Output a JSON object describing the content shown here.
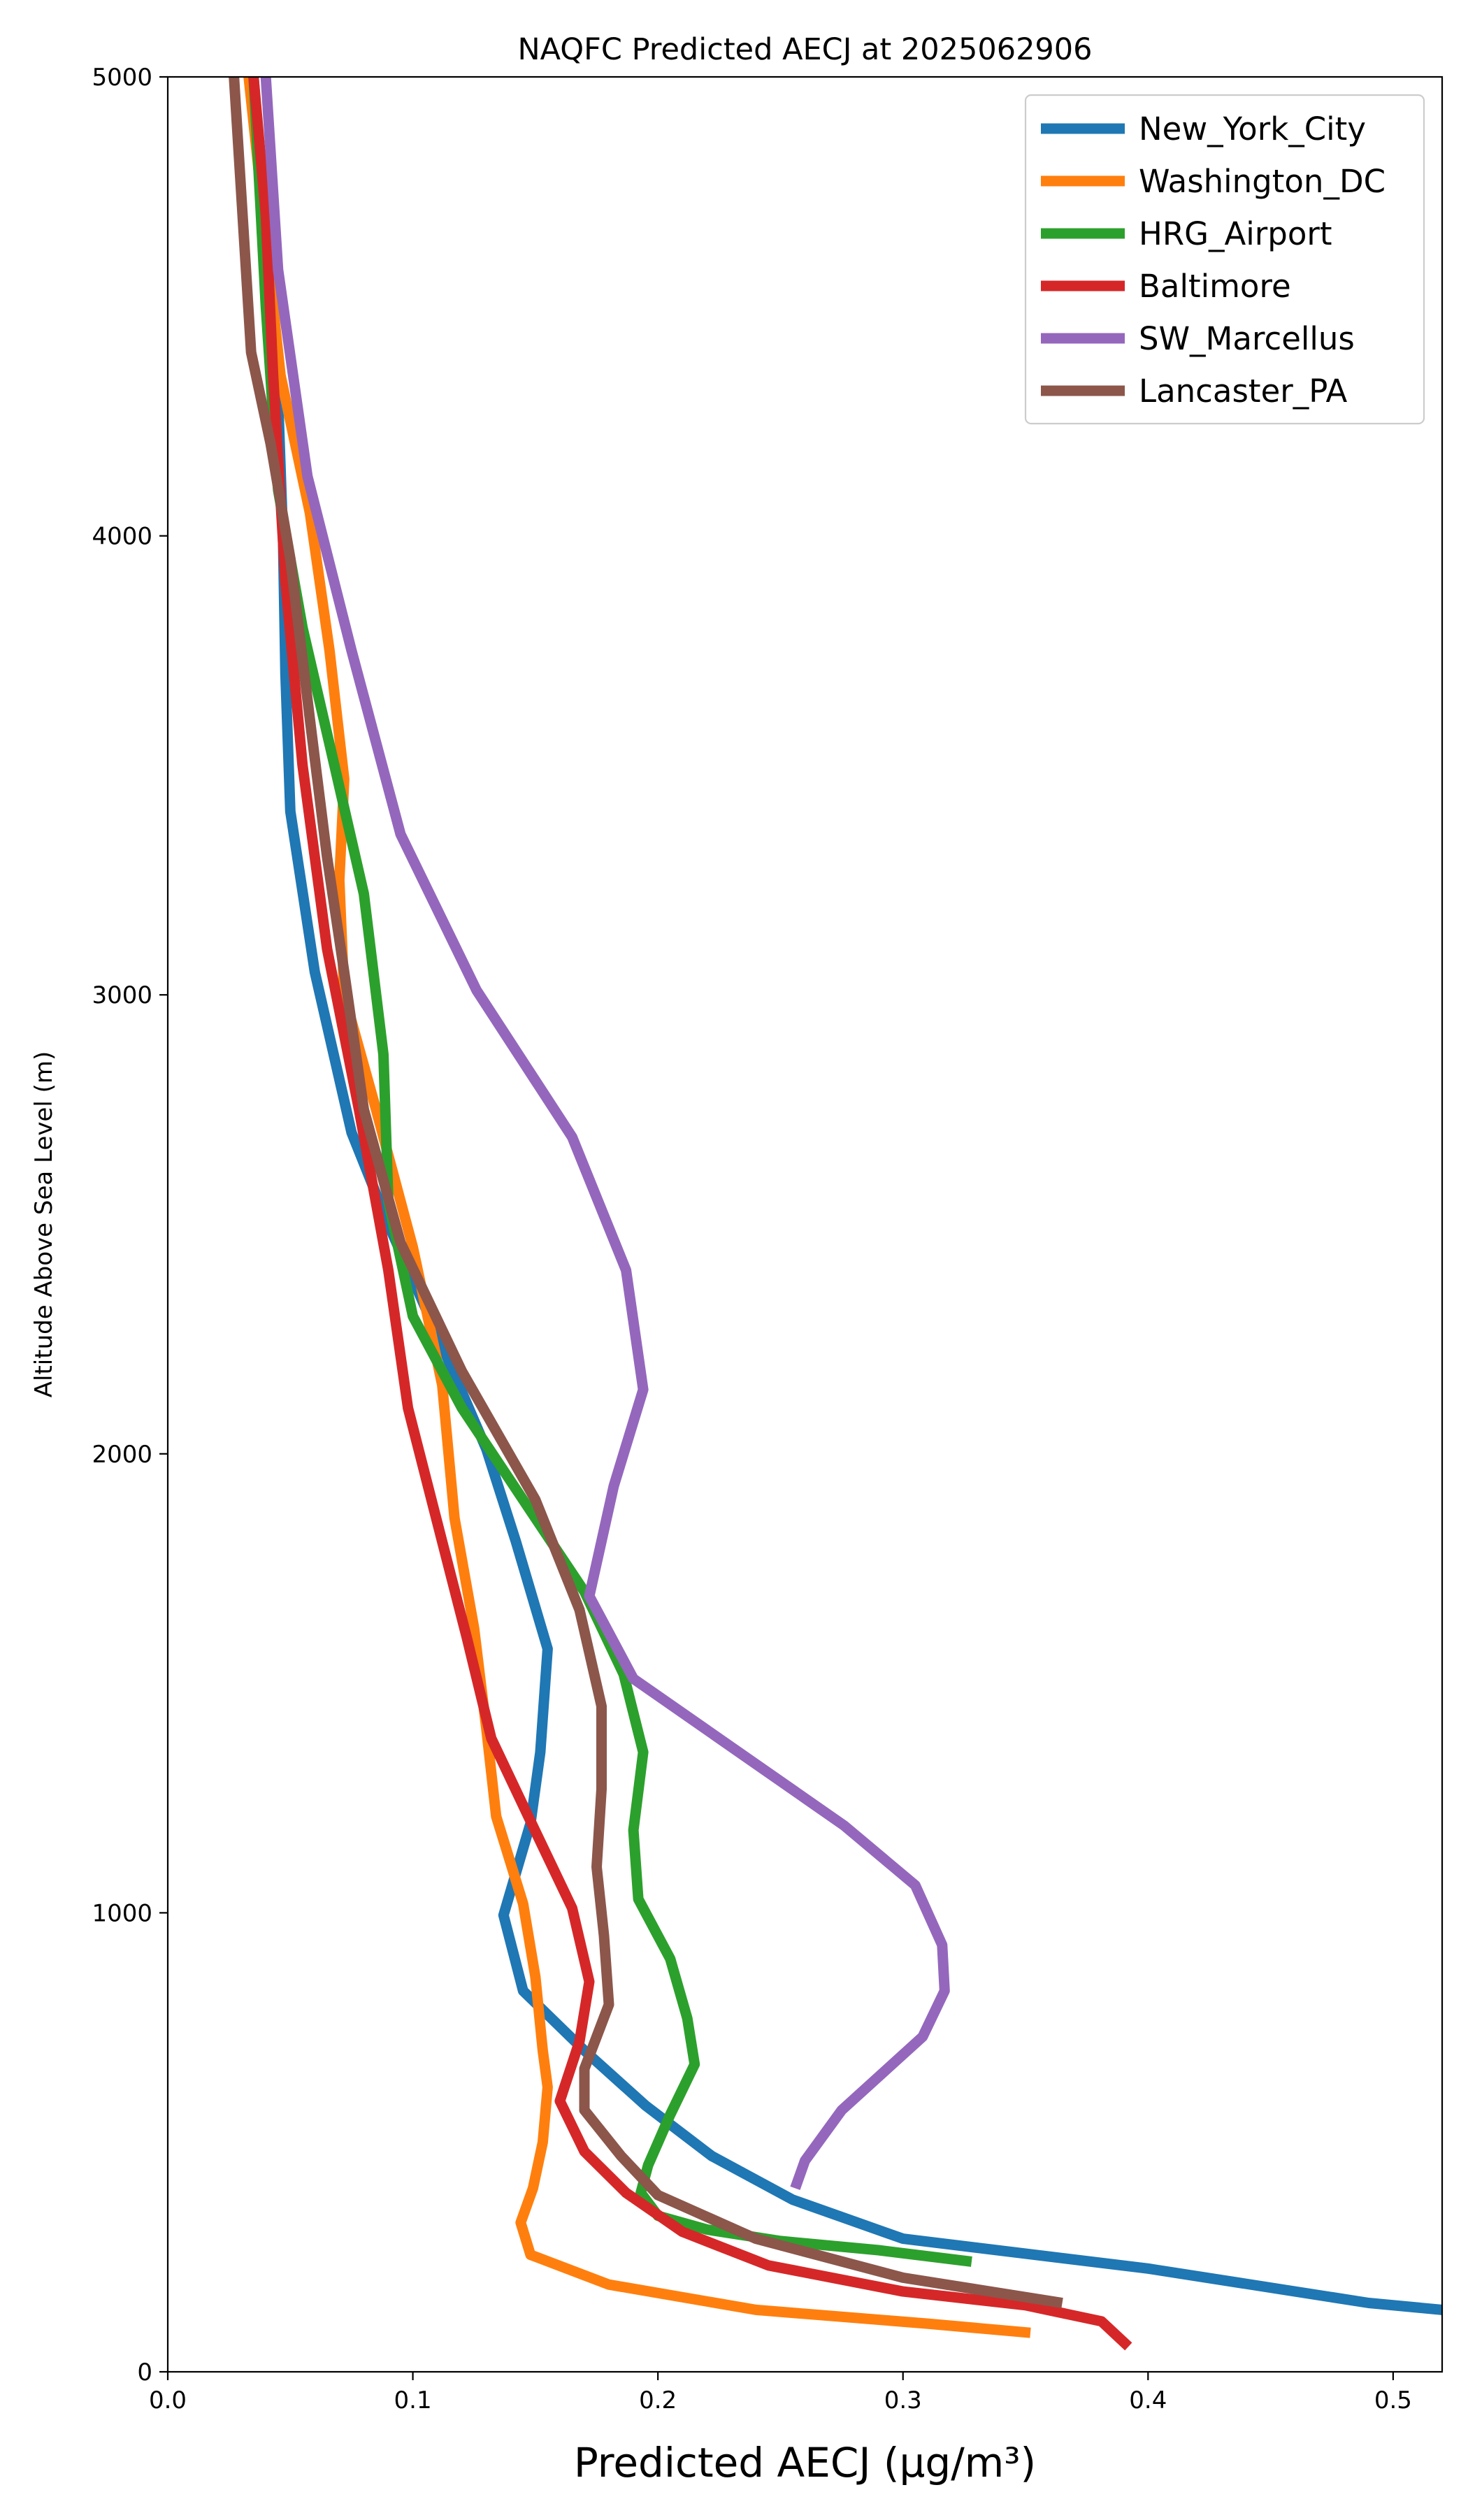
{
  "chart_data": {
    "type": "line",
    "title": "NAQFC Predicted AECJ at 2025062906",
    "xlabel": "Predicted AECJ (μg/m³)",
    "ylabel": "Altitude Above Sea Level (m)",
    "xlim": [
      0,
      0.52
    ],
    "ylim": [
      0,
      5000
    ],
    "xticks": [
      "0.0",
      "0.1",
      "0.2",
      "0.3",
      "0.4",
      "0.5"
    ],
    "yticks": [
      "0",
      "1000",
      "2000",
      "3000",
      "4000",
      "5000"
    ],
    "grid": false,
    "legend_position": "top-right",
    "series": [
      {
        "name": "New_York_City",
        "color": "#1f77b4",
        "points": [
          [
            0.52,
            135
          ],
          [
            0.49,
            150
          ],
          [
            0.4,
            225
          ],
          [
            0.3,
            290
          ],
          [
            0.255,
            375
          ],
          [
            0.222,
            470
          ],
          [
            0.195,
            580
          ],
          [
            0.17,
            700
          ],
          [
            0.145,
            830
          ],
          [
            0.137,
            995
          ],
          [
            0.148,
            1195
          ],
          [
            0.152,
            1350
          ],
          [
            0.155,
            1575
          ],
          [
            0.142,
            1810
          ],
          [
            0.13,
            2010
          ],
          [
            0.11,
            2260
          ],
          [
            0.09,
            2500
          ],
          [
            0.075,
            2700
          ],
          [
            0.06,
            3050
          ],
          [
            0.05,
            3400
          ],
          [
            0.048,
            3700
          ],
          [
            0.047,
            4000
          ],
          [
            0.045,
            4300
          ],
          [
            0.04,
            4650
          ],
          [
            0.035,
            5000
          ]
        ]
      },
      {
        "name": "Washington_DC",
        "color": "#ff7f0e",
        "points": [
          [
            0.352,
            85
          ],
          [
            0.31,
            105
          ],
          [
            0.24,
            135
          ],
          [
            0.18,
            190
          ],
          [
            0.148,
            255
          ],
          [
            0.144,
            325
          ],
          [
            0.149,
            400
          ],
          [
            0.153,
            500
          ],
          [
            0.155,
            620
          ],
          [
            0.153,
            700
          ],
          [
            0.15,
            860
          ],
          [
            0.145,
            1020
          ],
          [
            0.134,
            1210
          ],
          [
            0.13,
            1400
          ],
          [
            0.125,
            1620
          ],
          [
            0.117,
            1860
          ],
          [
            0.112,
            2150
          ],
          [
            0.1,
            2450
          ],
          [
            0.085,
            2750
          ],
          [
            0.072,
            3000
          ],
          [
            0.07,
            3250
          ],
          [
            0.072,
            3470
          ],
          [
            0.066,
            3750
          ],
          [
            0.058,
            4050
          ],
          [
            0.046,
            4350
          ],
          [
            0.04,
            4650
          ],
          [
            0.033,
            5000
          ]
        ]
      },
      {
        "name": "HRG_Airport",
        "color": "#2ca02c",
        "points": [
          [
            0.328,
            240
          ],
          [
            0.29,
            265
          ],
          [
            0.25,
            285
          ],
          [
            0.22,
            310
          ],
          [
            0.2,
            340
          ],
          [
            0.193,
            390
          ],
          [
            0.196,
            450
          ],
          [
            0.205,
            560
          ],
          [
            0.215,
            670
          ],
          [
            0.212,
            770
          ],
          [
            0.205,
            900
          ],
          [
            0.192,
            1030
          ],
          [
            0.19,
            1180
          ],
          [
            0.194,
            1350
          ],
          [
            0.186,
            1520
          ],
          [
            0.17,
            1700
          ],
          [
            0.145,
            1900
          ],
          [
            0.12,
            2100
          ],
          [
            0.1,
            2300
          ],
          [
            0.09,
            2550
          ],
          [
            0.088,
            2870
          ],
          [
            0.08,
            3220
          ],
          [
            0.068,
            3500
          ],
          [
            0.055,
            3800
          ],
          [
            0.045,
            4100
          ],
          [
            0.04,
            4500
          ],
          [
            0.035,
            5000
          ]
        ]
      },
      {
        "name": "Baltimore",
        "color": "#d62728",
        "points": [
          [
            0.392,
            55
          ],
          [
            0.381,
            110
          ],
          [
            0.35,
            145
          ],
          [
            0.3,
            175
          ],
          [
            0.245,
            232
          ],
          [
            0.21,
            305
          ],
          [
            0.187,
            390
          ],
          [
            0.17,
            480
          ],
          [
            0.16,
            590
          ],
          [
            0.168,
            720
          ],
          [
            0.172,
            850
          ],
          [
            0.165,
            1010
          ],
          [
            0.148,
            1200
          ],
          [
            0.132,
            1380
          ],
          [
            0.122,
            1600
          ],
          [
            0.11,
            1850
          ],
          [
            0.098,
            2100
          ],
          [
            0.09,
            2400
          ],
          [
            0.078,
            2750
          ],
          [
            0.065,
            3100
          ],
          [
            0.055,
            3500
          ],
          [
            0.048,
            3900
          ],
          [
            0.043,
            4350
          ],
          [
            0.04,
            4700
          ],
          [
            0.035,
            5000
          ]
        ]
      },
      {
        "name": "SW_Marcellus",
        "color": "#9467bd",
        "points": [
          [
            0.256,
            400
          ],
          [
            0.26,
            460
          ],
          [
            0.275,
            570
          ],
          [
            0.308,
            730
          ],
          [
            0.317,
            830
          ],
          [
            0.316,
            930
          ],
          [
            0.305,
            1060
          ],
          [
            0.276,
            1190
          ],
          [
            0.19,
            1510
          ],
          [
            0.172,
            1690
          ],
          [
            0.182,
            1930
          ],
          [
            0.194,
            2140
          ],
          [
            0.187,
            2400
          ],
          [
            0.165,
            2690
          ],
          [
            0.126,
            3010
          ],
          [
            0.095,
            3350
          ],
          [
            0.075,
            3750
          ],
          [
            0.057,
            4130
          ],
          [
            0.045,
            4580
          ],
          [
            0.04,
            5000
          ]
        ]
      },
      {
        "name": "Lancaster_PA",
        "color": "#8c564b",
        "points": [
          [
            0.365,
            150
          ],
          [
            0.3,
            205
          ],
          [
            0.24,
            290
          ],
          [
            0.2,
            385
          ],
          [
            0.185,
            470
          ],
          [
            0.17,
            570
          ],
          [
            0.17,
            660
          ],
          [
            0.18,
            800
          ],
          [
            0.178,
            950
          ],
          [
            0.175,
            1100
          ],
          [
            0.177,
            1270
          ],
          [
            0.177,
            1450
          ],
          [
            0.168,
            1660
          ],
          [
            0.15,
            1900
          ],
          [
            0.12,
            2180
          ],
          [
            0.095,
            2460
          ],
          [
            0.08,
            2750
          ],
          [
            0.072,
            3050
          ],
          [
            0.065,
            3300
          ],
          [
            0.058,
            3600
          ],
          [
            0.05,
            3950
          ],
          [
            0.042,
            4200
          ],
          [
            0.034,
            4400
          ],
          [
            0.027,
            5000
          ]
        ]
      }
    ]
  }
}
